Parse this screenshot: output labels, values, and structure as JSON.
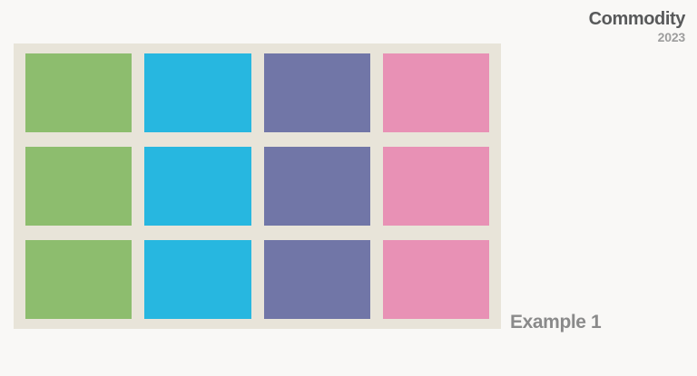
{
  "header": {
    "title": "Commodity",
    "year": "2023"
  },
  "board": {
    "rows": 3,
    "columns": 4,
    "background": "#e8e4d9",
    "column_colors": {
      "green": "#8dbd6e",
      "cyan": "#27b7e0",
      "purple": "#7176a7",
      "pink": "#e891b5"
    },
    "cells": [
      [
        "green",
        "cyan",
        "purple",
        "pink"
      ],
      [
        "green",
        "cyan",
        "purple",
        "pink"
      ],
      [
        "green",
        "cyan",
        "purple",
        "pink"
      ]
    ]
  },
  "footer": {
    "example_label": "Example 1"
  },
  "colors": {
    "page_background": "#f9f8f6",
    "title_text": "#58595a",
    "year_text": "#9d9d9d",
    "example_text": "#8a8a8a"
  }
}
